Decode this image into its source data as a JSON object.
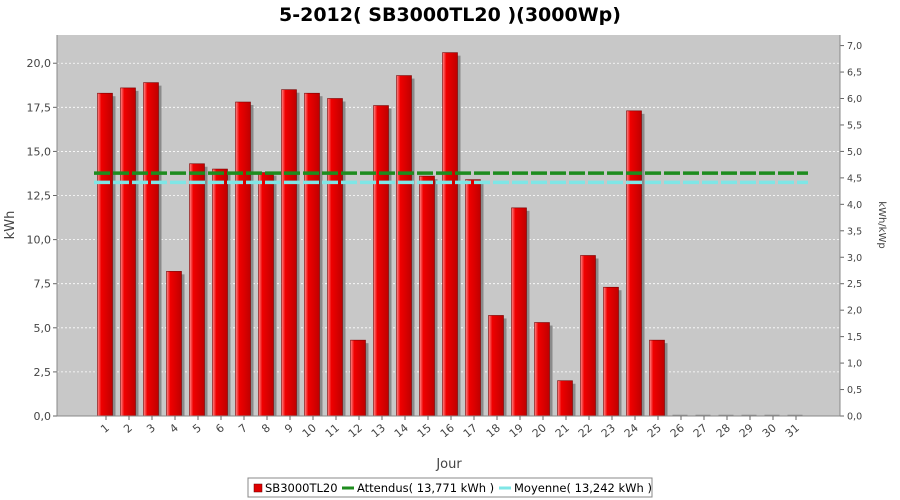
{
  "chart_data": {
    "type": "bar",
    "title": "5-2012( SB3000TL20 )(3000Wp)",
    "xlabel": "Jour",
    "ylabel": "kWh",
    "ylabel_right": "kWh/kWp",
    "ylim": [
      0,
      21.6
    ],
    "ylim_right": [
      0,
      7.2
    ],
    "yticks": [
      "0,0",
      "2,5",
      "5,0",
      "7,5",
      "10,0",
      "12,5",
      "15,0",
      "17,5",
      "20,0"
    ],
    "yticks_right": [
      "0,0",
      "0,5",
      "1,0",
      "1,5",
      "2,0",
      "2,5",
      "3,0",
      "3,5",
      "4,0",
      "4,5",
      "5,0",
      "5,5",
      "6,0",
      "6,5",
      "7,0"
    ],
    "categories": [
      "1",
      "2",
      "3",
      "4",
      "5",
      "6",
      "7",
      "8",
      "9",
      "10",
      "11",
      "12",
      "13",
      "14",
      "15",
      "16",
      "17",
      "18",
      "19",
      "20",
      "21",
      "22",
      "23",
      "24",
      "25",
      "26",
      "27",
      "28",
      "29",
      "30",
      "31"
    ],
    "series": [
      {
        "name": "SB3000TL20",
        "color": "#e00000",
        "values": [
          18.3,
          18.6,
          18.9,
          8.2,
          14.3,
          14.0,
          17.8,
          13.8,
          18.5,
          18.3,
          18.0,
          4.3,
          17.6,
          19.3,
          13.6,
          20.6,
          13.4,
          5.7,
          11.8,
          5.3,
          2.0,
          9.1,
          7.3,
          17.3,
          4.3,
          0,
          0,
          0,
          0,
          0,
          0
        ]
      }
    ],
    "reference_lines": [
      {
        "name": "Attendus",
        "value": 13.771,
        "color": "#1e8c1e"
      },
      {
        "name": "Moyenne",
        "value": 13.242,
        "color": "#7fe6e6"
      }
    ],
    "legend": {
      "placement": "bottom",
      "items": [
        "SB3000TL20",
        "Attendus( 13,771 kWh )",
        "Moyenne( 13,242 kWh )"
      ]
    }
  }
}
